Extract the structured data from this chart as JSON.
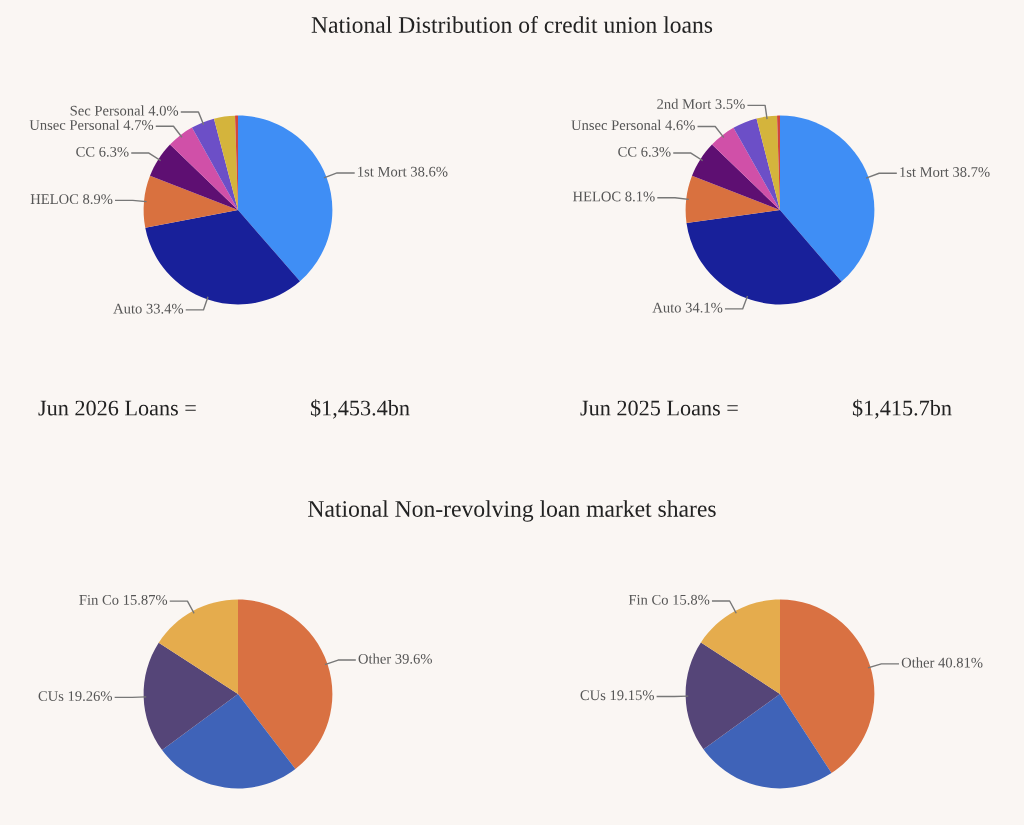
{
  "chart_data": [
    {
      "type": "pie",
      "title": "National Distribution of credit union loans",
      "categories": [
        "1st Mort",
        "Auto",
        "HELOC",
        "CC",
        "Unsec Personal",
        "Sec Personal",
        null,
        null
      ],
      "values": [
        38.6,
        33.4,
        8.9,
        6.3,
        4.7,
        4.0,
        3.6,
        0.5
      ],
      "value_labels": [
        "38.6%",
        "33.4%",
        "8.9%",
        "6.3%",
        "4.7%",
        "4.0%",
        null,
        null
      ],
      "colors": [
        "#3f8ef5",
        "#18209a",
        "#d9713f",
        "#5e0f72",
        "#d050a8",
        "#6c4fc7",
        "#d4b43c",
        "#d0463e"
      ],
      "annotations": [
        "Jun 2026 Loans =",
        "$1,453.4bn"
      ]
    },
    {
      "type": "pie",
      "categories": [
        "1st Mort",
        "Auto",
        "HELOC",
        "CC",
        "Unsec Personal",
        null,
        "2nd Mort",
        null
      ],
      "values": [
        38.7,
        34.1,
        8.1,
        6.3,
        4.6,
        4.2,
        3.5,
        0.5
      ],
      "value_labels": [
        "38.7%",
        "34.1%",
        "8.1%",
        "6.3%",
        "4.6%",
        null,
        "3.5%",
        null
      ],
      "colors": [
        "#3f8ef5",
        "#18209a",
        "#d9713f",
        "#5e0f72",
        "#d050a8",
        "#6c4fc7",
        "#d4b43c",
        "#d0463e"
      ],
      "annotations": [
        "Jun 2025 Loans =",
        "$1,415.7bn"
      ]
    },
    {
      "type": "pie",
      "title": "National Non-revolving loan market shares",
      "categories": [
        "Other",
        null,
        "CUs",
        "Fin Co"
      ],
      "values": [
        39.6,
        25.27,
        19.26,
        15.87
      ],
      "value_labels": [
        "39.6%",
        null,
        "19.26%",
        "15.87%"
      ],
      "colors": [
        "#d97142",
        "#3f63b8",
        "#554578",
        "#e5ac4d"
      ]
    },
    {
      "type": "pie",
      "categories": [
        "Other",
        null,
        "CUs",
        "Fin Co"
      ],
      "values": [
        40.81,
        24.24,
        19.15,
        15.8
      ],
      "value_labels": [
        "40.81%",
        null,
        "19.15%",
        "15.8%"
      ],
      "colors": [
        "#d97142",
        "#3f63b8",
        "#554578",
        "#e5ac4d"
      ]
    }
  ]
}
